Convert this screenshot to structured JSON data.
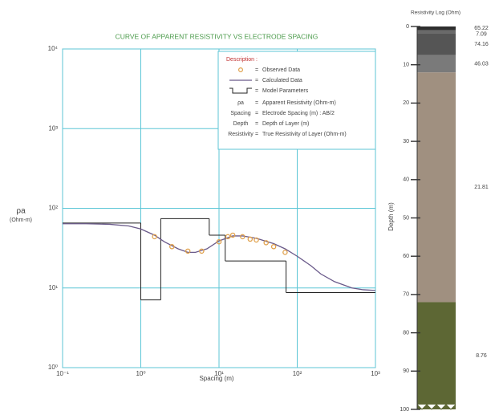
{
  "chart_data": [
    {
      "type": "line",
      "title": "CURVE OF APPARENT RESISTIVITY VS ELECTRODE SPACING",
      "xlabel": "Spacing (m)",
      "ylabel": "ρa",
      "ylabel_unit": "(Ohm-m)",
      "xlog": true,
      "ylog": true,
      "grid": true,
      "xlim": [
        0.1,
        1000
      ],
      "xticks": [
        {
          "value": 0.1,
          "label": "10⁻¹"
        },
        {
          "value": 1,
          "label": "10⁰"
        },
        {
          "value": 10,
          "label": "10¹"
        },
        {
          "value": 100,
          "label": "10²"
        },
        {
          "value": 1000,
          "label": "10³"
        }
      ],
      "ylim": [
        1,
        10000
      ],
      "yticks": [
        {
          "value": 1,
          "label": "10⁰"
        },
        {
          "value": 10,
          "label": "10¹"
        },
        {
          "value": 100,
          "label": "10²"
        },
        {
          "value": 1000,
          "label": "10³"
        },
        {
          "value": 10000,
          "label": "10⁴"
        }
      ],
      "series": [
        {
          "name": "Observed Data",
          "type": "scatter",
          "color": "#e0a04a",
          "x": [
            1.5,
            2.5,
            4,
            6,
            10,
            13,
            15,
            20,
            25,
            30,
            40,
            50,
            70
          ],
          "values": [
            44,
            33,
            29,
            29,
            38,
            44,
            46,
            44,
            41,
            40,
            37,
            33,
            28
          ]
        },
        {
          "name": "Calculated Data",
          "type": "line",
          "color": "#6a5a8a",
          "x": [
            0.1,
            0.2,
            0.4,
            0.7,
            1,
            1.5,
            2,
            3,
            4,
            5,
            7,
            10,
            15,
            20,
            30,
            50,
            70,
            100,
            150,
            200,
            300,
            500,
            700,
            1000
          ],
          "values": [
            64,
            64,
            63,
            60,
            55,
            46,
            38,
            31,
            28,
            28,
            31,
            39,
            45,
            45,
            42,
            36,
            31,
            25,
            19,
            15,
            12,
            10,
            9.5,
            9.3
          ]
        },
        {
          "name": "Model Parameters",
          "type": "step",
          "color": "#222222"
        }
      ],
      "legend_title": "Description :",
      "legend_separator": "=",
      "definitions": [
        {
          "term": "ρa",
          "text": "Apparent Resistivity (Ohm-m)"
        },
        {
          "term": "Spacing",
          "text": "Electrode Spacing (m) : AB/2"
        },
        {
          "term": "Depth",
          "text": "Depth of Layer (m)"
        },
        {
          "term": "Resistivity",
          "text": "True Resistivity of Layer (Ohm-m)"
        }
      ]
    },
    {
      "type": "log",
      "title": "Resistivity Log (Ohm)",
      "ylabel": "Depth (m)",
      "ylim": [
        0,
        100
      ],
      "yticks": [
        0,
        10,
        20,
        30,
        40,
        50,
        60,
        70,
        80,
        90,
        100
      ],
      "depths": [
        1,
        1.8,
        7.5,
        12,
        72
      ],
      "values": [
        65.22,
        7.09,
        74.16,
        46.03,
        21.81,
        8.76
      ],
      "colors": [
        "#2e2e2e",
        "#6a6a6a",
        "#555555",
        "#7a7a7a",
        "#a09080",
        "#5d6734"
      ]
    }
  ]
}
